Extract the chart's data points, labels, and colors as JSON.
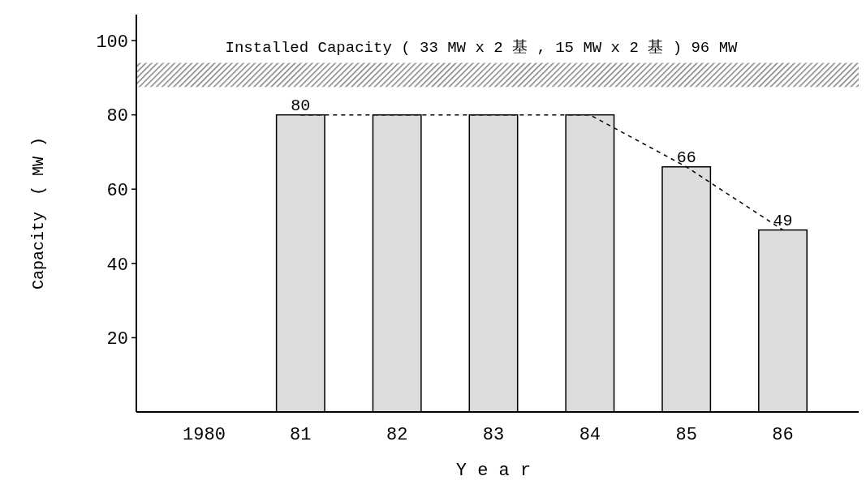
{
  "chart_data": {
    "type": "bar",
    "xlabel": "Y e a r",
    "ylabel": "Capacity　( MW )",
    "categories": [
      "1980",
      "81",
      "82",
      "83",
      "84",
      "85",
      "86"
    ],
    "series": [
      {
        "color": "#dcdcdc",
        "values": [
          null,
          80,
          80,
          80,
          80,
          66,
          49
        ],
        "value_labels": [
          null,
          "80",
          null,
          null,
          null,
          "66",
          "49"
        ]
      },
      {
        "type": "line",
        "color": "#000000",
        "line_style": "dashed",
        "marker": "none",
        "values": [
          null,
          80,
          80,
          80,
          80,
          66,
          49
        ]
      }
    ],
    "ylim": [
      0,
      107
    ],
    "yticks": [
      20,
      40,
      60,
      80,
      100
    ],
    "bands": [
      {
        "axis": "y",
        "from": 87.5,
        "to": 94,
        "label": "Installed Capacity ( 33 MW x 2 基 , 15 MW x 2  基 ) 96 MW",
        "color": "#808080"
      }
    ],
    "grid": false
  }
}
